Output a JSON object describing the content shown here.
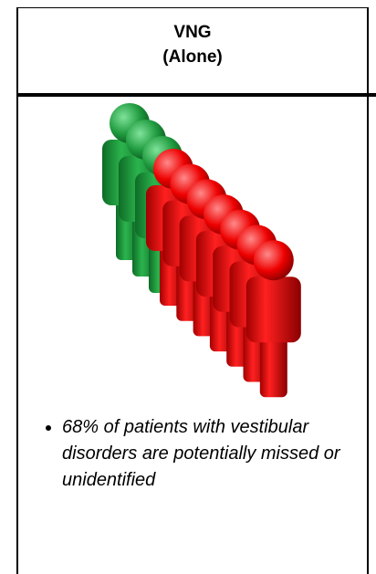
{
  "header": {
    "title": [
      "VNG",
      "(Alone)"
    ]
  },
  "bullets": [
    "68% of patients with vestibular disorders are potentially missed or unidentified"
  ]
}
